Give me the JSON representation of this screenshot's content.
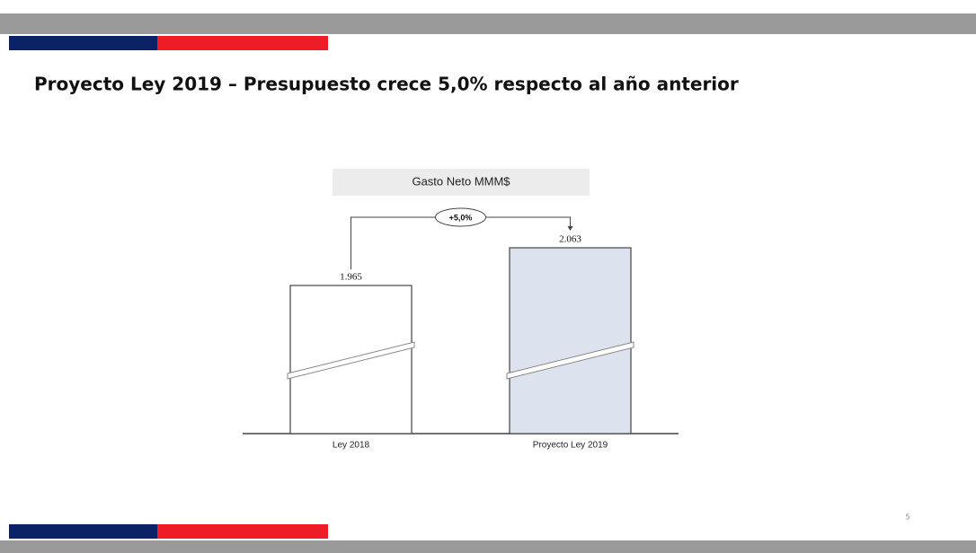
{
  "slide": {
    "title": "Proyecto Ley 2019 – Presupuesto crece 5,0% respecto al año anterior",
    "page_number": 5
  },
  "chart_data": {
    "type": "bar",
    "title": "Gasto Neto MMM$",
    "categories": [
      "Ley 2018",
      "Proyecto Ley 2019"
    ],
    "values": [
      1965,
      2063
    ],
    "value_labels": [
      "1.965",
      "2.063"
    ],
    "colors": [
      "#ffffff",
      "#dce3ee"
    ],
    "annotation": "+5,0%",
    "axis_break": true
  }
}
